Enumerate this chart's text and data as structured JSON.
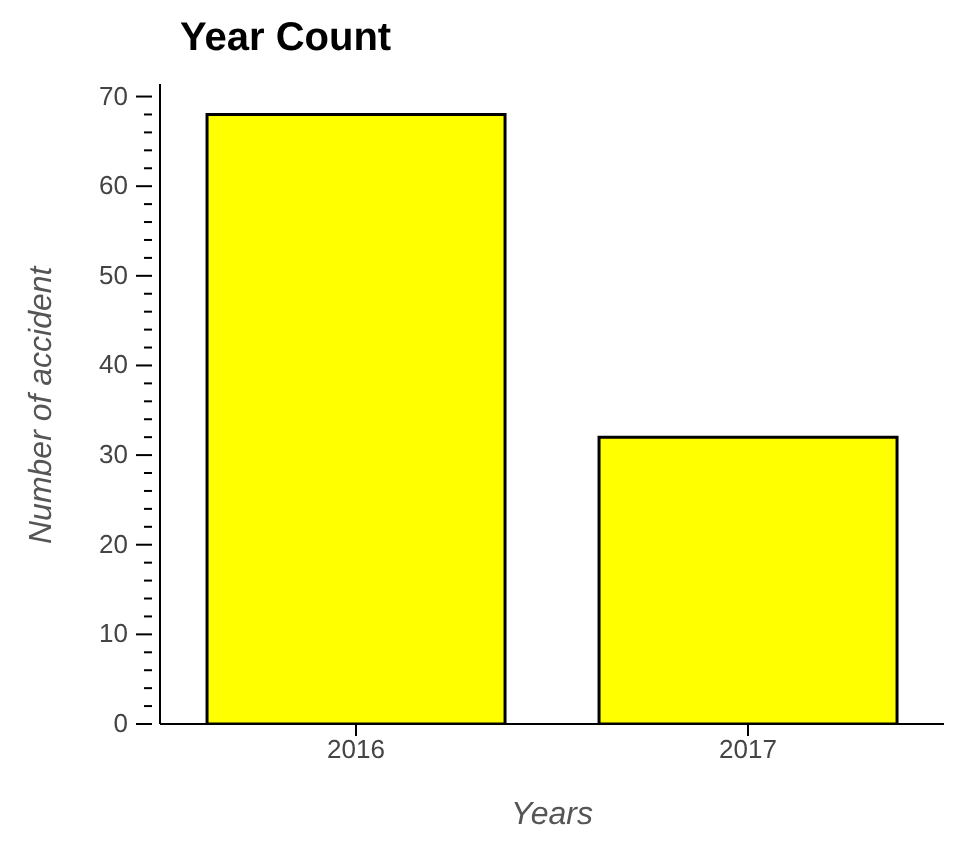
{
  "chart_data": {
    "type": "bar",
    "title": "Year Count",
    "xlabel": "Years",
    "ylabel": "Number of accident",
    "categories": [
      "2016",
      "2017"
    ],
    "values": [
      68,
      32
    ],
    "color": "#ffff00",
    "ylim": [
      0,
      71.4
    ],
    "yticks": [
      0,
      {
        "value": 2,
        "label": null
      },
      {
        "value": 4,
        "label": null
      },
      {
        "value": 6,
        "label": null
      },
      {
        "value": 8,
        "label": null
      },
      10,
      {
        "value": 12,
        "label": null
      },
      {
        "value": 14,
        "label": null
      },
      {
        "value": 16,
        "label": null
      },
      {
        "value": 18,
        "label": null
      },
      20,
      {
        "value": 22,
        "label": null
      },
      {
        "value": 24,
        "label": null
      },
      {
        "value": 26,
        "label": null
      },
      {
        "value": 28,
        "label": null
      },
      30,
      {
        "value": 32,
        "label": null
      },
      {
        "value": 34,
        "label": null
      },
      {
        "value": 36,
        "label": null
      },
      {
        "value": 38,
        "label": null
      },
      40,
      {
        "value": 42,
        "label": null
      },
      {
        "value": 44,
        "label": null
      },
      {
        "value": 46,
        "label": null
      },
      {
        "value": 48,
        "label": null
      },
      50,
      {
        "value": 52,
        "label": null
      },
      {
        "value": 54,
        "label": null
      },
      {
        "value": 56,
        "label": null
      },
      {
        "value": 58,
        "label": null
      },
      60,
      {
        "value": 62,
        "label": null
      },
      {
        "value": 64,
        "label": null
      },
      {
        "value": 66,
        "label": null
      },
      {
        "value": 68,
        "label": null
      },
      70
    ],
    "grid": false,
    "legend": false
  }
}
